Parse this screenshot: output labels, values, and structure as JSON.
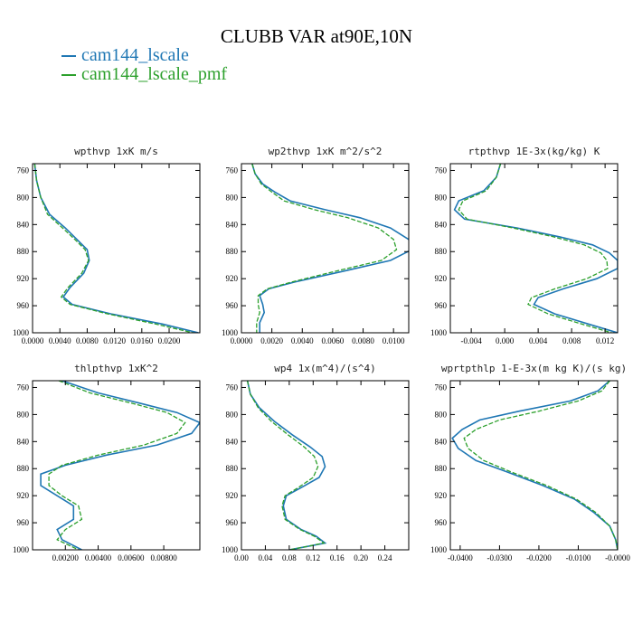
{
  "title": "CLUBB VAR at90E,10N",
  "legend": [
    {
      "label": "cam144_lscale",
      "color": "#1f77b4",
      "dash": "solid"
    },
    {
      "label": "cam144_lscale_pmf",
      "color": "#2ca02c",
      "dash": "dashed"
    }
  ],
  "chart_data": [
    {
      "type": "line",
      "title": "wpthvp  1xK m/s",
      "xlim": [
        0,
        0.0245
      ],
      "xticks": [
        0,
        0.004,
        0.008,
        0.012,
        0.016,
        0.02
      ],
      "xtick_labels": [
        "0.0000",
        "0.0040",
        "0.0080",
        "0.0120",
        "0.0160",
        "0.0200"
      ],
      "ylim": [
        750,
        1000
      ],
      "yticks": [
        760,
        800,
        840,
        880,
        920,
        960,
        1000
      ],
      "ytick_labels": [
        "760",
        "800",
        "840",
        "880",
        "920",
        "960",
        "1000"
      ],
      "series": [
        {
          "name": "cam144_lscale",
          "points": [
            [
              0.0003,
              750
            ],
            [
              0.0006,
              775
            ],
            [
              0.0012,
              800
            ],
            [
              0.0025,
              825
            ],
            [
              0.0048,
              845
            ],
            [
              0.0065,
              862
            ],
            [
              0.008,
              877
            ],
            [
              0.0083,
              893
            ],
            [
              0.0075,
              912
            ],
            [
              0.0055,
              933
            ],
            [
              0.0045,
              947
            ],
            [
              0.0058,
              958
            ],
            [
              0.0115,
              972
            ],
            [
              0.019,
              987
            ],
            [
              0.0243,
              1000
            ]
          ]
        },
        {
          "name": "cam144_lscale_pmf",
          "points": [
            [
              0.0003,
              750
            ],
            [
              0.0006,
              775
            ],
            [
              0.0012,
              800
            ],
            [
              0.0022,
              825
            ],
            [
              0.0044,
              845
            ],
            [
              0.0062,
              862
            ],
            [
              0.0077,
              877
            ],
            [
              0.0082,
              893
            ],
            [
              0.0072,
              912
            ],
            [
              0.0052,
              933
            ],
            [
              0.0042,
              947
            ],
            [
              0.0055,
              958
            ],
            [
              0.011,
              972
            ],
            [
              0.018,
              987
            ],
            [
              0.0235,
              1000
            ]
          ]
        }
      ]
    },
    {
      "type": "line",
      "title": "wp2thvp  1xK m^2/s^2",
      "xlim": [
        0,
        0.011
      ],
      "xticks": [
        0,
        0.002,
        0.004,
        0.006,
        0.008,
        0.01
      ],
      "xtick_labels": [
        "0.0000",
        "0.0020",
        "0.0040",
        "0.0060",
        "0.0080",
        "0.0100"
      ],
      "ylim": [
        750,
        1000
      ],
      "yticks": [
        760,
        800,
        840,
        880,
        920,
        960,
        1000
      ],
      "ytick_labels": [
        "760",
        "800",
        "840",
        "880",
        "920",
        "960",
        "1000"
      ],
      "series": [
        {
          "name": "cam144_lscale",
          "points": [
            [
              0.0007,
              750
            ],
            [
              0.0009,
              765
            ],
            [
              0.0014,
              780
            ],
            [
              0.0022,
              792
            ],
            [
              0.0032,
              805
            ],
            [
              0.0055,
              818
            ],
            [
              0.0078,
              830
            ],
            [
              0.0098,
              845
            ],
            [
              0.011,
              862
            ],
            [
              0.0112,
              877
            ],
            [
              0.0098,
              893
            ],
            [
              0.0065,
              910
            ],
            [
              0.0035,
              925
            ],
            [
              0.0018,
              935
            ],
            [
              0.0012,
              945
            ],
            [
              0.0014,
              958
            ],
            [
              0.0015,
              970
            ],
            [
              0.0012,
              985
            ],
            [
              0.0012,
              1000
            ]
          ]
        },
        {
          "name": "cam144_lscale_pmf",
          "points": [
            [
              0.0007,
              750
            ],
            [
              0.0009,
              765
            ],
            [
              0.0013,
              780
            ],
            [
              0.002,
              792
            ],
            [
              0.0028,
              805
            ],
            [
              0.0048,
              818
            ],
            [
              0.007,
              830
            ],
            [
              0.009,
              845
            ],
            [
              0.01,
              862
            ],
            [
              0.0102,
              877
            ],
            [
              0.0092,
              893
            ],
            [
              0.006,
              910
            ],
            [
              0.0033,
              925
            ],
            [
              0.0017,
              935
            ],
            [
              0.0011,
              945
            ],
            [
              0.0011,
              958
            ],
            [
              0.0012,
              970
            ],
            [
              0.001,
              985
            ],
            [
              0.001,
              1000
            ]
          ]
        }
      ]
    },
    {
      "type": "line",
      "title": "rtpthvp  1E-3x(kg/kg) K",
      "xlim": [
        -0.0065,
        0.0135
      ],
      "xticks": [
        -0.004,
        0,
        0.004,
        0.008,
        0.012
      ],
      "xtick_labels": [
        "-0.004",
        "0.000",
        "0.004",
        "0.008",
        "0.012"
      ],
      "ylim": [
        750,
        1000
      ],
      "yticks": [
        760,
        800,
        840,
        880,
        920,
        960,
        1000
      ],
      "ytick_labels": [
        "760",
        "800",
        "840",
        "880",
        "920",
        "960",
        "1000"
      ],
      "series": [
        {
          "name": "cam144_lscale",
          "points": [
            [
              -0.0005,
              750
            ],
            [
              -0.001,
              770
            ],
            [
              -0.0025,
              790
            ],
            [
              -0.0055,
              805
            ],
            [
              -0.006,
              818
            ],
            [
              -0.0048,
              832
            ],
            [
              0.0015,
              845
            ],
            [
              0.0065,
              858
            ],
            [
              0.0105,
              870
            ],
            [
              0.0125,
              882
            ],
            [
              0.0135,
              893
            ],
            [
              0.0135,
              905
            ],
            [
              0.011,
              920
            ],
            [
              0.007,
              935
            ],
            [
              0.004,
              948
            ],
            [
              0.0035,
              958
            ],
            [
              0.006,
              972
            ],
            [
              0.01,
              987
            ],
            [
              0.0135,
              1000
            ]
          ]
        },
        {
          "name": "cam144_lscale_pmf",
          "points": [
            [
              -0.0005,
              750
            ],
            [
              -0.001,
              770
            ],
            [
              -0.0022,
              790
            ],
            [
              -0.005,
              805
            ],
            [
              -0.0055,
              818
            ],
            [
              -0.0045,
              832
            ],
            [
              0.001,
              845
            ],
            [
              0.0058,
              858
            ],
            [
              0.0095,
              870
            ],
            [
              0.0115,
              882
            ],
            [
              0.0122,
              893
            ],
            [
              0.0123,
              905
            ],
            [
              0.0098,
              920
            ],
            [
              0.006,
              935
            ],
            [
              0.0032,
              948
            ],
            [
              0.0028,
              958
            ],
            [
              0.0052,
              972
            ],
            [
              0.0092,
              987
            ],
            [
              0.0128,
              1000
            ]
          ]
        }
      ]
    },
    {
      "type": "line",
      "title": "thlpthvp  1xK^2",
      "xlim": [
        0,
        0.0102
      ],
      "xticks": [
        0.002,
        0.004,
        0.006,
        0.008
      ],
      "xtick_labels": [
        "0.00200",
        "0.00400",
        "0.00600",
        "0.00800"
      ],
      "ylim": [
        750,
        1000
      ],
      "yticks": [
        760,
        800,
        840,
        880,
        920,
        960,
        1000
      ],
      "ytick_labels": [
        "760",
        "800",
        "840",
        "880",
        "920",
        "960",
        "1000"
      ],
      "series": [
        {
          "name": "cam144_lscale",
          "points": [
            [
              0.0018,
              750
            ],
            [
              0.004,
              768
            ],
            [
              0.0065,
              783
            ],
            [
              0.0088,
              797
            ],
            [
              0.0102,
              812
            ],
            [
              0.0097,
              828
            ],
            [
              0.0076,
              845
            ],
            [
              0.0045,
              860
            ],
            [
              0.002,
              875
            ],
            [
              0.0005,
              888
            ],
            [
              0.0005,
              905
            ],
            [
              0.0015,
              920
            ],
            [
              0.0025,
              935
            ],
            [
              0.0025,
              955
            ],
            [
              0.0015,
              970
            ],
            [
              0.0018,
              985
            ],
            [
              0.003,
              1000
            ]
          ]
        },
        {
          "name": "cam144_lscale_pmf",
          "points": [
            [
              0.0016,
              750
            ],
            [
              0.0035,
              768
            ],
            [
              0.006,
              783
            ],
            [
              0.0082,
              797
            ],
            [
              0.0093,
              812
            ],
            [
              0.0088,
              828
            ],
            [
              0.0068,
              845
            ],
            [
              0.004,
              860
            ],
            [
              0.0018,
              875
            ],
            [
              0.001,
              888
            ],
            [
              0.001,
              905
            ],
            [
              0.0018,
              920
            ],
            [
              0.0028,
              935
            ],
            [
              0.003,
              955
            ],
            [
              0.002,
              970
            ],
            [
              0.0015,
              985
            ],
            [
              0.0028,
              1000
            ]
          ]
        }
      ]
    },
    {
      "type": "line",
      "title": "wp4  1x(m^4)/(s^4)",
      "xlim": [
        0,
        0.28
      ],
      "xticks": [
        0,
        0.04,
        0.08,
        0.12,
        0.16,
        0.2,
        0.24
      ],
      "xtick_labels": [
        "0.00",
        "0.04",
        "0.08",
        "0.12",
        "0.16",
        "0.20",
        "0.24"
      ],
      "ylim": [
        750,
        1000
      ],
      "yticks": [
        760,
        800,
        840,
        880,
        920,
        960,
        1000
      ],
      "ytick_labels": [
        "760",
        "800",
        "840",
        "880",
        "920",
        "960",
        "1000"
      ],
      "series": [
        {
          "name": "cam144_lscale",
          "points": [
            [
              0.01,
              750
            ],
            [
              0.015,
              770
            ],
            [
              0.03,
              790
            ],
            [
              0.055,
              810
            ],
            [
              0.085,
              830
            ],
            [
              0.115,
              848
            ],
            [
              0.135,
              862
            ],
            [
              0.14,
              877
            ],
            [
              0.13,
              893
            ],
            [
              0.1,
              908
            ],
            [
              0.075,
              920
            ],
            [
              0.07,
              935
            ],
            [
              0.075,
              955
            ],
            [
              0.1,
              970
            ],
            [
              0.125,
              980
            ],
            [
              0.14,
              990
            ],
            [
              0.11,
              995
            ],
            [
              0.08,
              1000
            ]
          ]
        },
        {
          "name": "cam144_lscale_pmf",
          "points": [
            [
              0.01,
              750
            ],
            [
              0.015,
              770
            ],
            [
              0.028,
              790
            ],
            [
              0.05,
              810
            ],
            [
              0.078,
              830
            ],
            [
              0.105,
              848
            ],
            [
              0.122,
              862
            ],
            [
              0.128,
              877
            ],
            [
              0.12,
              893
            ],
            [
              0.095,
              908
            ],
            [
              0.073,
              920
            ],
            [
              0.068,
              935
            ],
            [
              0.073,
              955
            ],
            [
              0.098,
              970
            ],
            [
              0.122,
              980
            ],
            [
              0.138,
              990
            ],
            [
              0.11,
              995
            ],
            [
              0.08,
              1000
            ]
          ]
        }
      ]
    },
    {
      "type": "line",
      "title": "wprtpthlp  1-E-3x(m kg K)/(s kg)",
      "xlim": [
        -0.0425,
        0
      ],
      "xticks": [
        -0.04,
        -0.03,
        -0.02,
        -0.01,
        0
      ],
      "xtick_labels": [
        "-0.0400",
        "-0.0300",
        "-0.0200",
        "-0.0100",
        "-0.0000"
      ],
      "ylim": [
        750,
        1000
      ],
      "yticks": [
        760,
        800,
        840,
        880,
        920,
        960,
        1000
      ],
      "ytick_labels": [
        "760",
        "800",
        "840",
        "880",
        "920",
        "960",
        "1000"
      ],
      "series": [
        {
          "name": "cam144_lscale",
          "points": [
            [
              -0.002,
              750
            ],
            [
              -0.005,
              765
            ],
            [
              -0.012,
              780
            ],
            [
              -0.025,
              795
            ],
            [
              -0.035,
              808
            ],
            [
              -0.0395,
              822
            ],
            [
              -0.042,
              835
            ],
            [
              -0.0405,
              850
            ],
            [
              -0.036,
              868
            ],
            [
              -0.028,
              885
            ],
            [
              -0.019,
              905
            ],
            [
              -0.011,
              925
            ],
            [
              -0.006,
              945
            ],
            [
              -0.002,
              965
            ],
            [
              -0.0005,
              985
            ],
            [
              0,
              1000
            ]
          ]
        },
        {
          "name": "cam144_lscale_pmf",
          "points": [
            [
              -0.002,
              750
            ],
            [
              -0.004,
              765
            ],
            [
              -0.01,
              780
            ],
            [
              -0.02,
              795
            ],
            [
              -0.03,
              808
            ],
            [
              -0.036,
              822
            ],
            [
              -0.039,
              835
            ],
            [
              -0.038,
              850
            ],
            [
              -0.034,
              868
            ],
            [
              -0.027,
              885
            ],
            [
              -0.018,
              905
            ],
            [
              -0.0105,
              925
            ],
            [
              -0.0055,
              945
            ],
            [
              -0.002,
              965
            ],
            [
              -0.0005,
              985
            ],
            [
              0,
              1000
            ]
          ]
        }
      ]
    }
  ]
}
